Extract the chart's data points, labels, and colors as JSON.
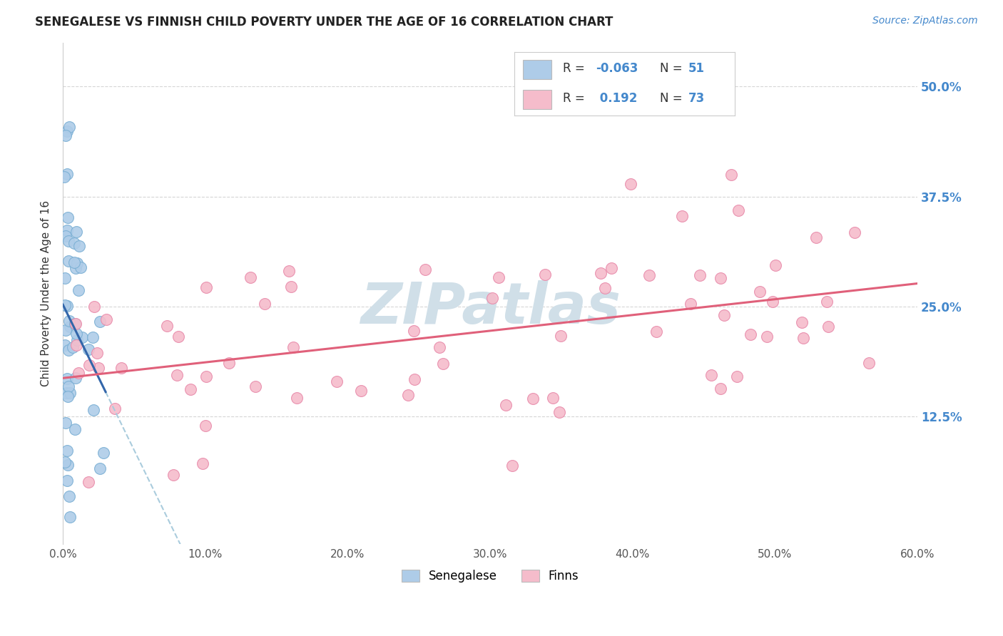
{
  "title": "SENEGALESE VS FINNISH CHILD POVERTY UNDER THE AGE OF 16 CORRELATION CHART",
  "source": "Source: ZipAtlas.com",
  "ylabel": "Child Poverty Under the Age of 16",
  "xlim": [
    0.0,
    0.6
  ],
  "ylim": [
    -0.02,
    0.55
  ],
  "xtick_labels": [
    "0.0%",
    "10.0%",
    "20.0%",
    "30.0%",
    "40.0%",
    "50.0%",
    "60.0%"
  ],
  "xtick_values": [
    0.0,
    0.1,
    0.2,
    0.3,
    0.4,
    0.5,
    0.6
  ],
  "right_ytick_labels": [
    "12.5%",
    "25.0%",
    "37.5%",
    "50.0%"
  ],
  "right_ytick_values": [
    0.125,
    0.25,
    0.375,
    0.5
  ],
  "senegalese_color": "#aecce8",
  "senegalese_edge": "#7aafd4",
  "finns_color": "#f5bccb",
  "finns_edge": "#e88aaa",
  "reg_sen_color": "#3366aa",
  "reg_fin_color": "#e0607a",
  "reg_sen_dash_color": "#aaccdd",
  "background_color": "#ffffff",
  "watermark": "ZIPatlas",
  "watermark_color": "#d0dfe8",
  "legend_box_color": "#e8e8e8",
  "legend_text_color_r": "#333333",
  "legend_text_color_n": "#4488cc",
  "r1_val": "-0.063",
  "n1_val": "51",
  "r2_val": "0.192",
  "n2_val": "73",
  "bottom_legend_labels": [
    "Senegalese",
    "Finns"
  ]
}
